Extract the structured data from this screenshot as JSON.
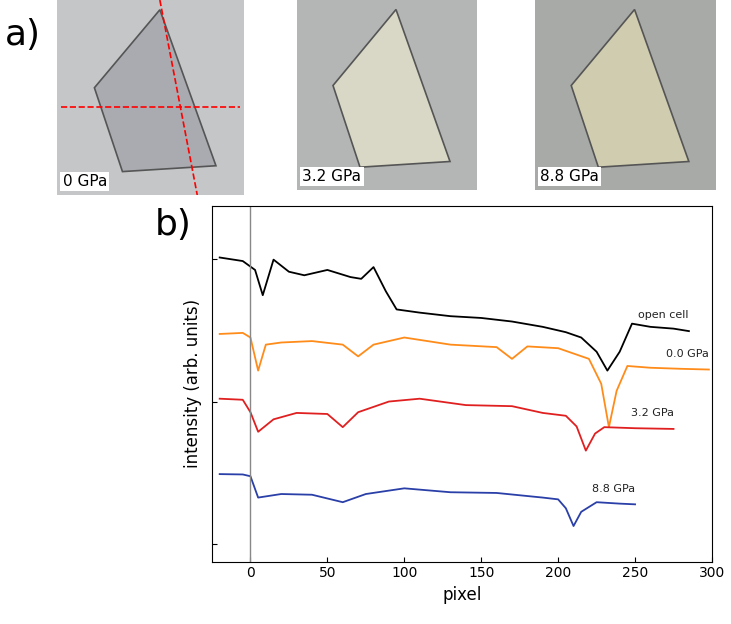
{
  "panel_labels": [
    "a)",
    "b)"
  ],
  "images": [
    {
      "label": "0 GPa"
    },
    {
      "label": "3.2 GPa"
    },
    {
      "label": "8.8 GPa"
    }
  ],
  "chart_data": {
    "type": "line",
    "x_label": "pixel",
    "y_label": "intensity (arb. units)",
    "xlim": [
      -25,
      300
    ],
    "xticks": [
      0,
      50,
      100,
      150,
      200,
      250,
      300
    ],
    "ylim": [
      0,
      10
    ],
    "yticks": [
      0.5,
      4.5,
      8.5
    ],
    "tick_labels": "x",
    "vertical_line": 0,
    "series": [
      {
        "name": "open cell",
        "color": "#000000",
        "x": [
          -20,
          -5,
          3,
          8,
          15,
          25,
          35,
          50,
          65,
          72,
          80,
          88,
          95,
          110,
          130,
          150,
          170,
          190,
          205,
          215,
          225,
          232,
          240,
          248,
          260,
          275,
          285
        ],
        "values": [
          8.55,
          8.45,
          8.2,
          7.49,
          8.49,
          8.15,
          8.05,
          8.2,
          8.0,
          7.95,
          8.28,
          7.6,
          7.09,
          7.0,
          6.9,
          6.85,
          6.75,
          6.6,
          6.45,
          6.3,
          5.9,
          5.37,
          5.9,
          6.69,
          6.6,
          6.55,
          6.48
        ]
      },
      {
        "name": "0.0 GPa",
        "color": "#ff8c1a",
        "x": [
          -20,
          -5,
          0,
          5,
          10,
          20,
          40,
          60,
          70,
          80,
          100,
          130,
          160,
          170,
          180,
          200,
          220,
          228,
          233,
          238,
          245,
          260,
          280,
          298
        ],
        "values": [
          6.4,
          6.43,
          6.3,
          5.37,
          6.1,
          6.16,
          6.2,
          6.1,
          5.77,
          6.1,
          6.3,
          6.1,
          6.03,
          5.7,
          6.05,
          6.0,
          5.7,
          5.0,
          3.78,
          4.8,
          5.5,
          5.45,
          5.42,
          5.4
        ]
      },
      {
        "name": "3.2 GPa",
        "color": "#e02020",
        "x": [
          -20,
          -5,
          0,
          5,
          15,
          30,
          50,
          60,
          70,
          90,
          110,
          140,
          170,
          190,
          205,
          212,
          218,
          224,
          230,
          250,
          275
        ],
        "values": [
          4.58,
          4.55,
          4.2,
          3.65,
          4.0,
          4.18,
          4.15,
          3.78,
          4.2,
          4.5,
          4.58,
          4.4,
          4.37,
          4.18,
          4.1,
          3.8,
          3.12,
          3.6,
          3.78,
          3.75,
          3.73
        ]
      },
      {
        "name": "8.8 GPa",
        "color": "#2a3fa8",
        "x": [
          -20,
          -5,
          0,
          5,
          20,
          40,
          60,
          75,
          100,
          130,
          160,
          190,
          200,
          205,
          210,
          215,
          225,
          240,
          250
        ],
        "values": [
          2.46,
          2.45,
          2.4,
          1.8,
          1.9,
          1.88,
          1.67,
          1.9,
          2.06,
          1.95,
          1.93,
          1.8,
          1.75,
          1.5,
          1.0,
          1.4,
          1.67,
          1.63,
          1.61
        ]
      }
    ]
  }
}
